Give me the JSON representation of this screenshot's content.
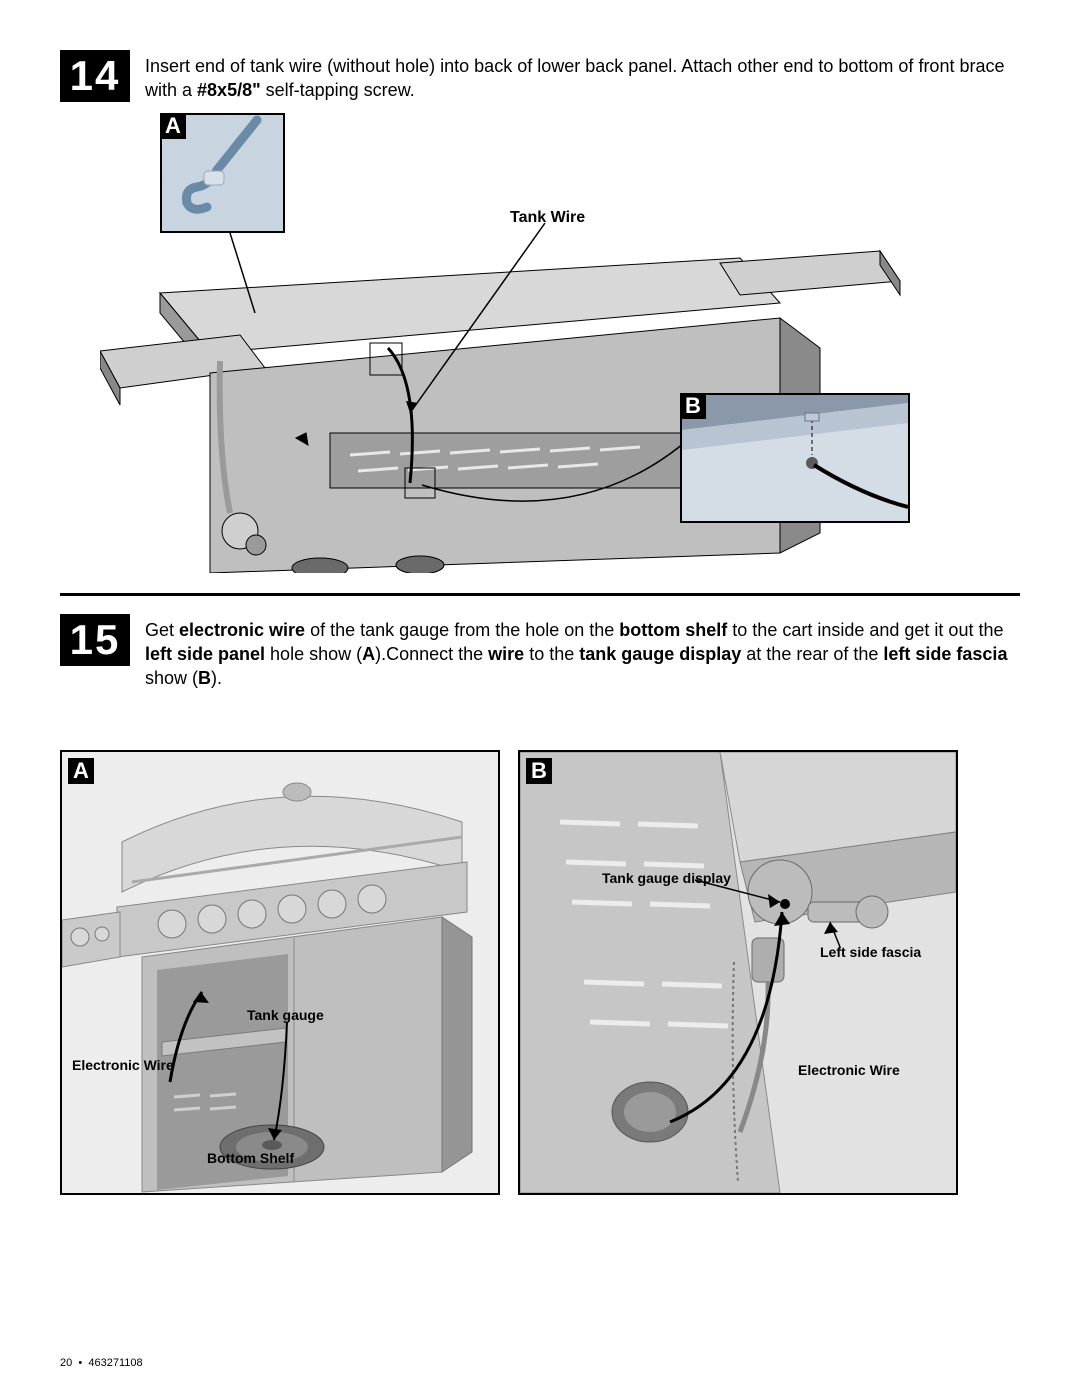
{
  "step14": {
    "number": "14",
    "text_prefix": "Insert end of tank wire (without hole) into back of lower back panel. Attach other end to bottom of front brace with a ",
    "bold_part": "#8x5/8\"",
    "text_suffix": " self-tapping screw.",
    "inset_a_label": "A",
    "inset_b_label": "B",
    "tank_wire_label": "Tank Wire"
  },
  "step15": {
    "number": "15",
    "parts": [
      {
        "t": "Get ",
        "b": false
      },
      {
        "t": "electronic wire",
        "b": true
      },
      {
        "t": " of the tank gauge from the hole on the ",
        "b": false
      },
      {
        "t": "bottom shelf",
        "b": true
      },
      {
        "t": " to the cart inside and get it out the ",
        "b": false
      },
      {
        "t": "left side panel",
        "b": true
      },
      {
        "t": " hole show (",
        "b": false
      },
      {
        "t": "A",
        "b": true
      },
      {
        "t": ").Connect the ",
        "b": false
      },
      {
        "t": "wire",
        "b": true
      },
      {
        "t": " to the ",
        "b": false
      },
      {
        "t": "tank gauge display",
        "b": true
      },
      {
        "t": " at the rear of the ",
        "b": false
      },
      {
        "t": "left side fascia",
        "b": true
      },
      {
        "t": " show (",
        "b": false
      },
      {
        "t": "B",
        "b": true
      },
      {
        "t": ").",
        "b": false
      }
    ],
    "panel_a_label": "A",
    "panel_b_label": "B",
    "labels": {
      "tank_gauge": "Tank gauge",
      "electronic_wire_a": "Electronic Wire",
      "bottom_shelf": "Bottom Shelf",
      "tank_gauge_display": "Tank gauge display",
      "left_side_fascia": "Left side fascia",
      "electronic_wire_b": "Electronic Wire"
    }
  },
  "footer": {
    "page": "20",
    "sep": "•",
    "code": "463271108"
  },
  "colors": {
    "bg": "#ffffff",
    "ink": "#000000",
    "metal_light": "#d8d8d8",
    "metal_mid": "#b8b8b8",
    "metal_dark": "#808080",
    "metal_darker": "#5a5a5a",
    "inset_bg": "#c8d4e0",
    "wire_hook": "#6a8aa8"
  }
}
